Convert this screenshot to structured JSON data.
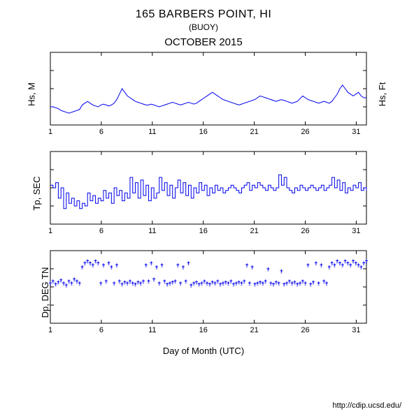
{
  "header": {
    "station": "165 BARBERS POINT, HI",
    "type": "(BUOY)",
    "period": "OCTOBER 2015"
  },
  "xaxis": {
    "label": "Day of Month (UTC)",
    "min": 1,
    "max": 32,
    "ticks": [
      1,
      6,
      11,
      16,
      21,
      26,
      31
    ]
  },
  "panels": [
    {
      "id": "hs",
      "ylabel": "Hs, M",
      "y2label": "Hs, Ft",
      "ylim": [
        0,
        4
      ],
      "yticks": [
        0,
        1,
        2,
        3,
        4
      ],
      "y2lim": [
        0,
        13
      ],
      "y2ticks": [
        3.3,
        6.6,
        9.8,
        13
      ],
      "type": "line",
      "height": 120,
      "line_color": "#0000ee",
      "line_width": 1,
      "axis_color": "#000",
      "tick_fontsize": 11,
      "data": [
        1.0,
        1.0,
        0.95,
        0.9,
        0.8,
        0.75,
        0.7,
        0.65,
        0.7,
        0.75,
        0.8,
        0.85,
        1.1,
        1.2,
        1.3,
        1.2,
        1.1,
        1.05,
        1.0,
        1.1,
        1.15,
        1.1,
        1.05,
        1.1,
        1.2,
        1.4,
        1.7,
        2.0,
        1.8,
        1.6,
        1.5,
        1.4,
        1.3,
        1.25,
        1.2,
        1.15,
        1.1,
        1.1,
        1.15,
        1.1,
        1.05,
        1.0,
        1.05,
        1.1,
        1.15,
        1.2,
        1.25,
        1.2,
        1.15,
        1.1,
        1.15,
        1.2,
        1.25,
        1.2,
        1.15,
        1.2,
        1.3,
        1.4,
        1.5,
        1.6,
        1.7,
        1.8,
        1.7,
        1.6,
        1.5,
        1.4,
        1.35,
        1.3,
        1.25,
        1.2,
        1.15,
        1.1,
        1.15,
        1.2,
        1.25,
        1.3,
        1.35,
        1.4,
        1.5,
        1.6,
        1.55,
        1.5,
        1.45,
        1.4,
        1.35,
        1.3,
        1.35,
        1.4,
        1.35,
        1.3,
        1.25,
        1.2,
        1.25,
        1.3,
        1.45,
        1.6,
        1.5,
        1.4,
        1.35,
        1.3,
        1.25,
        1.2,
        1.25,
        1.3,
        1.25,
        1.2,
        1.3,
        1.5,
        1.7,
        2.0,
        2.2,
        2.0,
        1.8,
        1.7,
        1.6,
        1.7,
        1.8,
        1.6,
        1.5,
        1.5
      ]
    },
    {
      "id": "tp",
      "ylabel": "Tp, SEC",
      "ylim": [
        0,
        28
      ],
      "yticks": [
        0,
        7,
        14,
        21,
        28
      ],
      "type": "step",
      "height": 120,
      "line_color": "#0000ee",
      "line_width": 1,
      "axis_color": "#000",
      "tick_fontsize": 11,
      "data": [
        15,
        14,
        16,
        10,
        14,
        6,
        12,
        8,
        10,
        7,
        9,
        6,
        8,
        7,
        12,
        9,
        11,
        8,
        10,
        9,
        13,
        10,
        12,
        8,
        14,
        11,
        13,
        9,
        12,
        10,
        18,
        12,
        16,
        10,
        17,
        11,
        15,
        9,
        14,
        10,
        12,
        18,
        13,
        16,
        11,
        15,
        10,
        14,
        17,
        12,
        16,
        11,
        15,
        10,
        14,
        12,
        16,
        13,
        15,
        11,
        14,
        12,
        15,
        13,
        14,
        12,
        13,
        14,
        15,
        14,
        13,
        12,
        14,
        15,
        16,
        13,
        15,
        14,
        16,
        15,
        14,
        13,
        15,
        14,
        13,
        14,
        19,
        15,
        18,
        14,
        13,
        12,
        14,
        13,
        15,
        14,
        13,
        14,
        15,
        14,
        13,
        14,
        15,
        13,
        14,
        15,
        18,
        14,
        17,
        13,
        16,
        12,
        14,
        13,
        15,
        14,
        16,
        13,
        14,
        13
      ]
    },
    {
      "id": "dp",
      "ylabel": "Dp, DEG TN",
      "ylim": [
        0,
        360
      ],
      "yticks": [
        0,
        90,
        180,
        270,
        360
      ],
      "type": "scatter",
      "height": 120,
      "marker_color": "#0000ee",
      "marker_size": 2.5,
      "axis_color": "#000",
      "tick_fontsize": 11,
      "data": [
        200,
        210,
        195,
        205,
        215,
        200,
        190,
        210,
        200,
        220,
        210,
        200,
        280,
        300,
        310,
        300,
        290,
        310,
        300,
        200,
        290,
        210,
        300,
        280,
        200,
        290,
        210,
        195,
        205,
        200,
        210,
        200,
        195,
        205,
        200,
        210,
        290,
        210,
        300,
        220,
        280,
        200,
        290,
        210,
        195,
        200,
        205,
        210,
        290,
        200,
        280,
        210,
        300,
        190,
        200,
        205,
        195,
        200,
        210,
        200,
        195,
        205,
        200,
        210,
        195,
        200,
        205,
        200,
        210,
        195,
        200,
        205,
        200,
        210,
        290,
        200,
        280,
        195,
        200,
        205,
        200,
        210,
        270,
        200,
        195,
        205,
        200,
        260,
        195,
        200,
        210,
        200,
        205,
        195,
        200,
        210,
        200,
        290,
        195,
        205,
        300,
        200,
        290,
        210,
        200,
        280,
        300,
        290,
        310,
        300,
        290,
        310,
        300,
        290,
        310,
        300,
        290,
        280,
        300,
        310
      ]
    }
  ],
  "footer": {
    "url": "http://cdip.ucsd.edu/"
  }
}
